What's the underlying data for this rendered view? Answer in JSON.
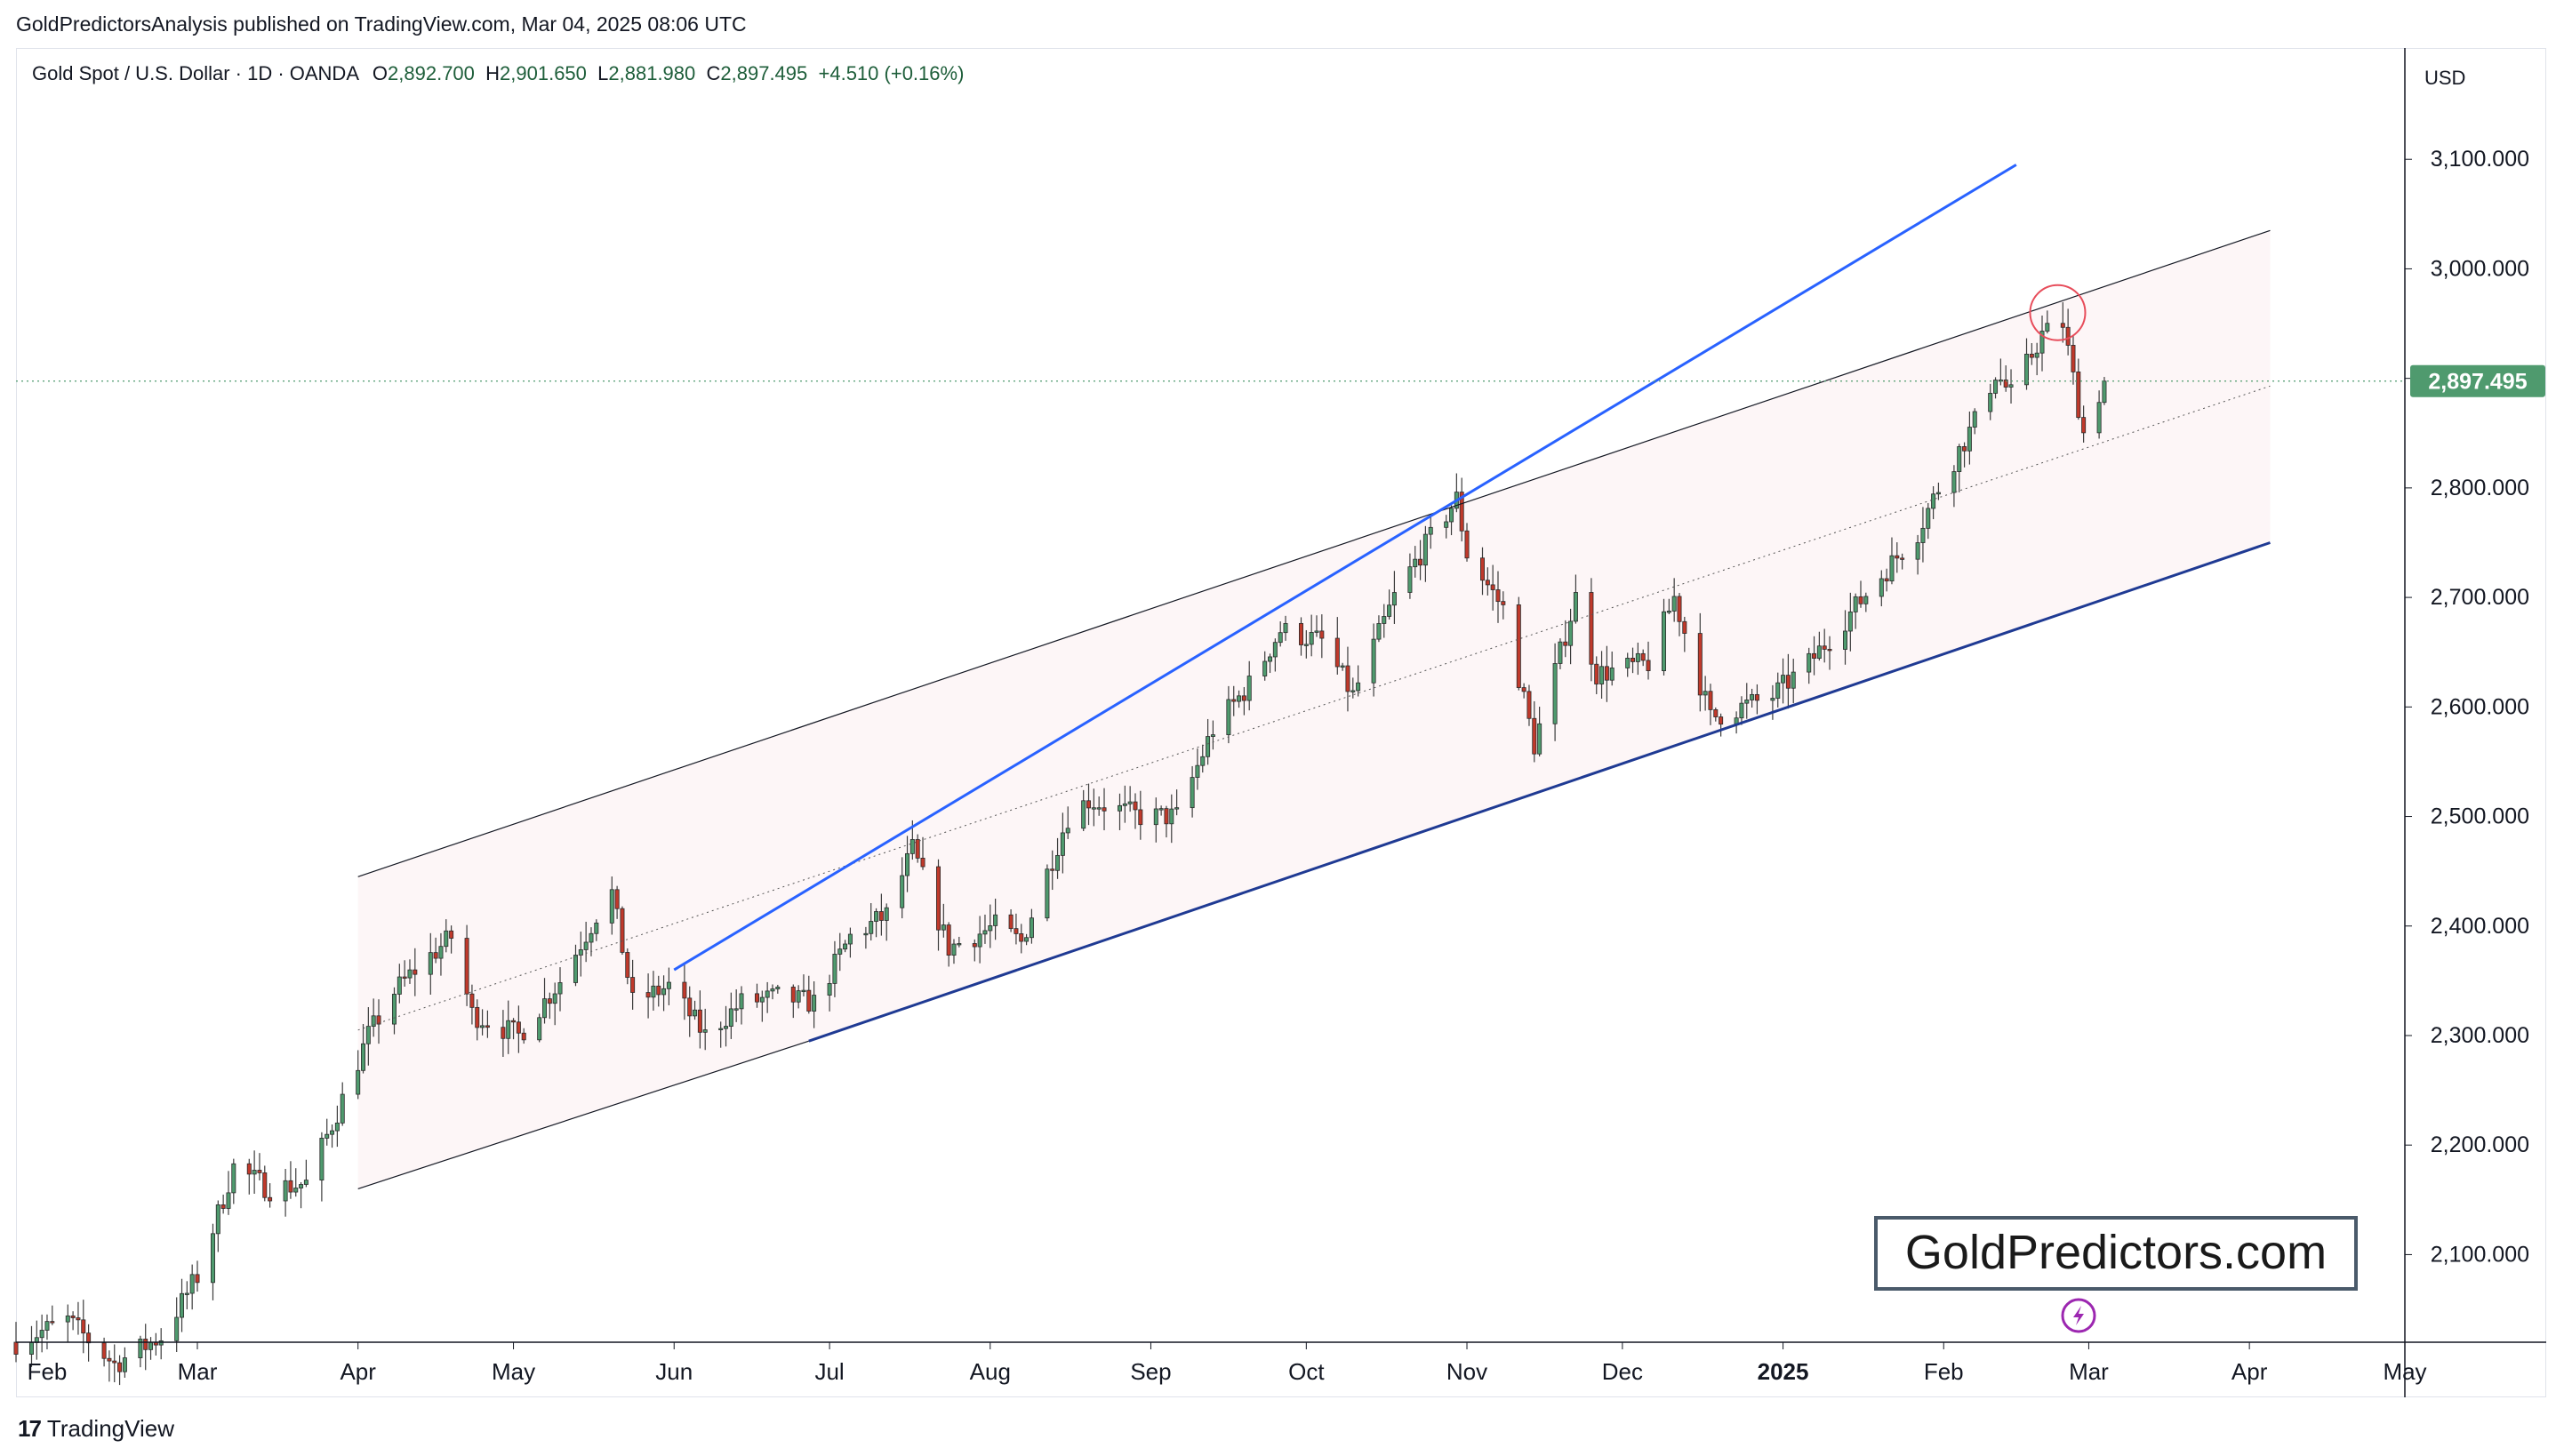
{
  "header": {
    "published_by": "GoldPredictorsAnalysis published on TradingView.com, Mar 04, 2025 08:06 UTC"
  },
  "legend": {
    "symbol": "Gold Spot / U.S. Dollar · 1D · OANDA",
    "open_label": "O",
    "open": "2,892.700",
    "high_label": "H",
    "high": "2,901.650",
    "low_label": "L",
    "low": "2,881.980",
    "close_label": "C",
    "close": "2,897.495",
    "change": "+4.510 (+0.16%)"
  },
  "axis": {
    "currency": "USD",
    "last_price": "2,897.495"
  },
  "watermark": "GoldPredictors.com",
  "footer": {
    "brand_glyph": "17",
    "brand": "TradingView"
  },
  "colors": {
    "up": "#26a69a",
    "up_body": "#4f9a6e",
    "down": "#c0392b",
    "channel_fill": "#fdf6f7",
    "blue_line": "#2962ff",
    "navy_line": "#1f3a93",
    "price_label_bg": "#4f9a6e",
    "circle": "#e74c5a",
    "lightning": "#9c27b0"
  },
  "chart_data": {
    "type": "candlestick",
    "title": "Gold Spot / U.S. Dollar · 1D · OANDA",
    "yticks": [
      2100,
      2200,
      2300,
      2400,
      2500,
      2600,
      2700,
      2800,
      2900,
      3000,
      3100
    ],
    "ytick_labels": [
      "2,100.000",
      "2,200.000",
      "2,300.000",
      "2,400.000",
      "2,500.000",
      "2,600.000",
      "2,700.000",
      "2,800.000",
      "2,900.000",
      "3,000.000",
      "3,100.000"
    ],
    "ylim": [
      2020,
      3200
    ],
    "x_labels": [
      {
        "label": "Feb",
        "date": "2024-02-01"
      },
      {
        "label": "Mar",
        "date": "2024-03-01"
      },
      {
        "label": "Apr",
        "date": "2024-04-01"
      },
      {
        "label": "May",
        "date": "2024-05-01"
      },
      {
        "label": "Jun",
        "date": "2024-06-01"
      },
      {
        "label": "Jul",
        "date": "2024-07-01"
      },
      {
        "label": "Aug",
        "date": "2024-08-01"
      },
      {
        "label": "Sep",
        "date": "2024-09-01"
      },
      {
        "label": "Oct",
        "date": "2024-10-01"
      },
      {
        "label": "Nov",
        "date": "2024-11-01"
      },
      {
        "label": "Dec",
        "date": "2024-12-01"
      },
      {
        "label": "2025",
        "date": "2025-01-01",
        "bold": true
      },
      {
        "label": "Feb",
        "date": "2025-02-01"
      },
      {
        "label": "Mar",
        "date": "2025-03-01"
      },
      {
        "label": "Apr",
        "date": "2025-04-01"
      },
      {
        "label": "May",
        "date": "2025-05-01"
      }
    ],
    "x_range": [
      "2024-01-26",
      "2025-05-01"
    ],
    "price_path": [
      [
        "2024-01-26",
        2020
      ],
      [
        "2024-02-05",
        2040
      ],
      [
        "2024-02-14",
        2000
      ],
      [
        "2024-02-23",
        2025
      ],
      [
        "2024-03-01",
        2080
      ],
      [
        "2024-03-08",
        2180
      ],
      [
        "2024-03-15",
        2160
      ],
      [
        "2024-03-22",
        2165
      ],
      [
        "2024-03-28",
        2230
      ],
      [
        "2024-04-03",
        2300
      ],
      [
        "2024-04-08",
        2340
      ],
      [
        "2024-04-12",
        2360
      ],
      [
        "2024-04-19",
        2390
      ],
      [
        "2024-04-23",
        2320
      ],
      [
        "2024-05-02",
        2300
      ],
      [
        "2024-05-10",
        2350
      ],
      [
        "2024-05-17",
        2410
      ],
      [
        "2024-05-20",
        2430
      ],
      [
        "2024-05-24",
        2330
      ],
      [
        "2024-05-31",
        2345
      ],
      [
        "2024-06-07",
        2300
      ],
      [
        "2024-06-14",
        2330
      ],
      [
        "2024-06-21",
        2335
      ],
      [
        "2024-06-28",
        2330
      ],
      [
        "2024-07-05",
        2390
      ],
      [
        "2024-07-12",
        2410
      ],
      [
        "2024-07-17",
        2470
      ],
      [
        "2024-07-24",
        2380
      ],
      [
        "2024-08-02",
        2400
      ],
      [
        "2024-08-07",
        2385
      ],
      [
        "2024-08-16",
        2500
      ],
      [
        "2024-08-20",
        2515
      ],
      [
        "2024-08-30",
        2500
      ],
      [
        "2024-09-06",
        2500
      ],
      [
        "2024-09-13",
        2580
      ],
      [
        "2024-09-20",
        2620
      ],
      [
        "2024-09-26",
        2670
      ],
      [
        "2024-10-04",
        2660
      ],
      [
        "2024-10-10",
        2610
      ],
      [
        "2024-10-18",
        2700
      ],
      [
        "2024-10-23",
        2740
      ],
      [
        "2024-10-30",
        2790
      ],
      [
        "2024-11-01",
        2740
      ],
      [
        "2024-11-08",
        2690
      ],
      [
        "2024-11-14",
        2565
      ],
      [
        "2024-11-22",
        2700
      ],
      [
        "2024-11-26",
        2630
      ],
      [
        "2024-12-06",
        2640
      ],
      [
        "2024-12-11",
        2700
      ],
      [
        "2024-12-18",
        2590
      ],
      [
        "2024-12-30",
        2610
      ],
      [
        "2025-01-06",
        2640
      ],
      [
        "2025-01-13",
        2680
      ],
      [
        "2025-01-20",
        2720
      ],
      [
        "2025-01-27",
        2760
      ],
      [
        "2025-01-31",
        2800
      ],
      [
        "2025-02-07",
        2860
      ],
      [
        "2025-02-11",
        2905
      ],
      [
        "2025-02-14",
        2885
      ],
      [
        "2025-02-20",
        2940
      ],
      [
        "2025-02-24",
        2950
      ],
      [
        "2025-02-28",
        2850
      ],
      [
        "2025-03-04",
        2897.495
      ]
    ],
    "lines": [
      {
        "name": "channel-upper",
        "from": [
          "2024-04-01",
          2445
        ],
        "to": [
          "2025-04-05",
          3035
        ],
        "color": "#131722",
        "width": 1.2
      },
      {
        "name": "channel-mid",
        "from": [
          "2024-04-01",
          2305
        ],
        "to": [
          "2025-04-05",
          2893
        ],
        "color": "#555555",
        "width": 1,
        "dash": true
      },
      {
        "name": "channel-lower",
        "from": [
          "2024-04-01",
          2160
        ],
        "to": [
          "2024-06-27",
          2295
        ],
        "color": "#131722",
        "width": 1.2
      },
      {
        "name": "trend-support",
        "from": [
          "2024-06-27",
          2295
        ],
        "to": [
          "2025-04-05",
          2750
        ],
        "color": "#1f3a93",
        "width": 3
      },
      {
        "name": "trend-steep",
        "from": [
          "2024-06-01",
          2360
        ],
        "to": [
          "2025-02-15",
          3095
        ],
        "color": "#2962ff",
        "width": 3
      }
    ],
    "channel_box": {
      "from": "2024-04-01",
      "to": "2025-04-05"
    },
    "marker_circle": {
      "date": "2025-02-23",
      "value": 2960
    },
    "last_price": 2897.495
  }
}
